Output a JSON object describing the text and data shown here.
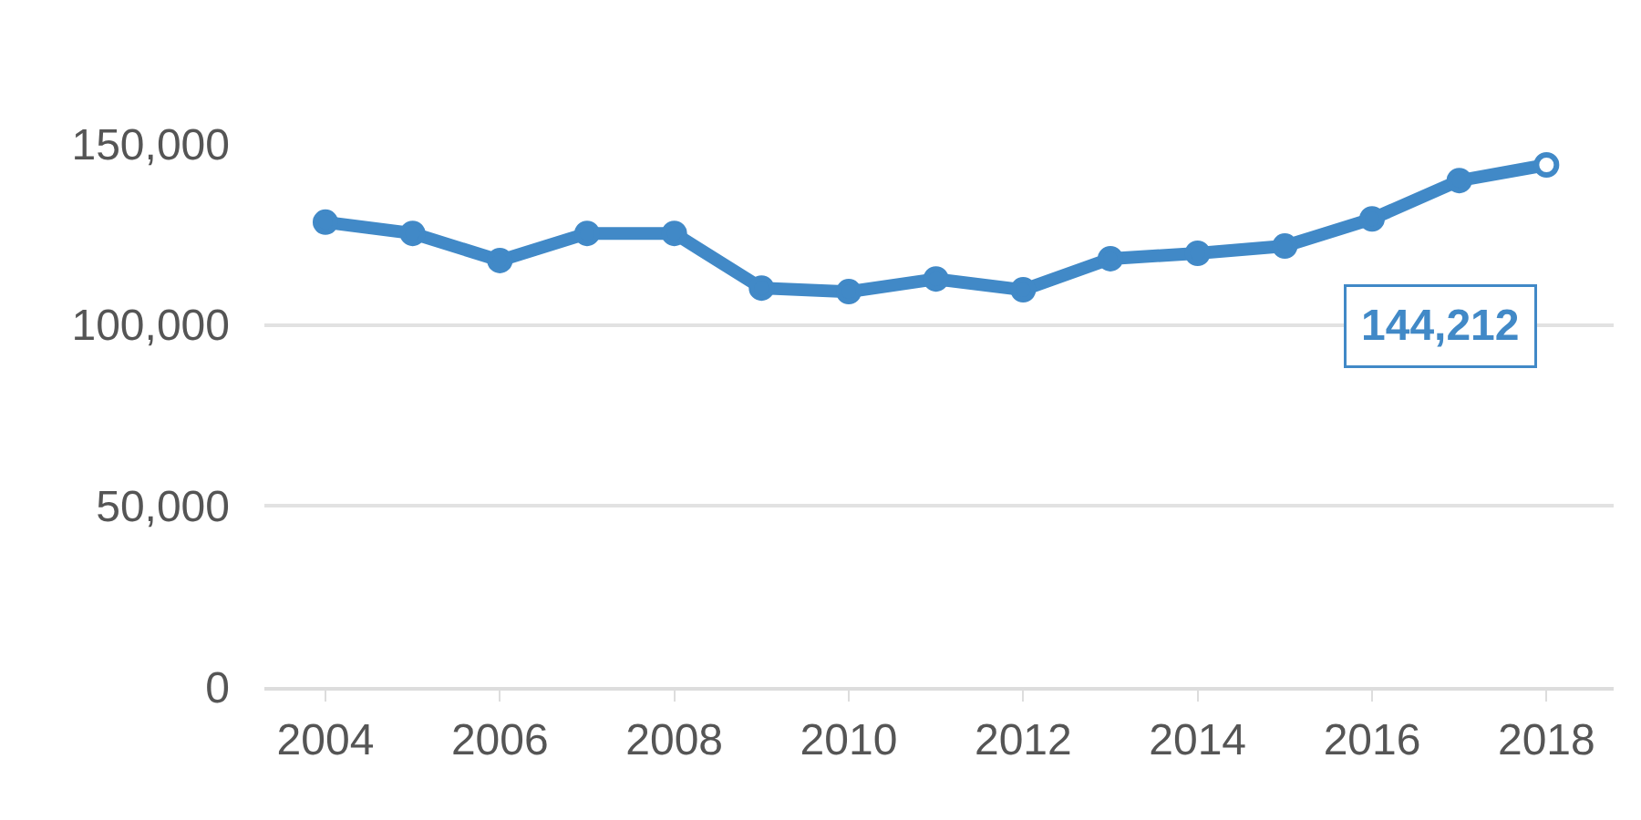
{
  "chart_data": {
    "type": "line",
    "x": [
      2004,
      2005,
      2006,
      2007,
      2008,
      2009,
      2010,
      2011,
      2012,
      2013,
      2014,
      2015,
      2016,
      2017,
      2018
    ],
    "series": [
      {
        "color": "#4189c7",
        "values": [
          128400,
          125300,
          117800,
          125300,
          125300,
          110200,
          109200,
          112700,
          109700,
          118300,
          119800,
          121800,
          129300,
          139900,
          144212
        ]
      }
    ],
    "value_labels": [
      null,
      null,
      null,
      null,
      null,
      null,
      null,
      null,
      null,
      null,
      null,
      null,
      null,
      null,
      "144,212"
    ],
    "xlim": [
      2003.3,
      2018.77
    ],
    "xticks": [
      2004,
      2006,
      2008,
      2010,
      2012,
      2014,
      2016,
      2018
    ],
    "ylim": [
      0,
      150000
    ],
    "yticks": [
      {
        "value": 0,
        "label": "0"
      },
      {
        "value": 50000,
        "label": "50,000"
      },
      {
        "value": 100000,
        "label": "100,000"
      },
      {
        "value": 150000,
        "label": "150,000"
      }
    ],
    "grid": "y",
    "marker": "circle",
    "line_style": "solid"
  }
}
